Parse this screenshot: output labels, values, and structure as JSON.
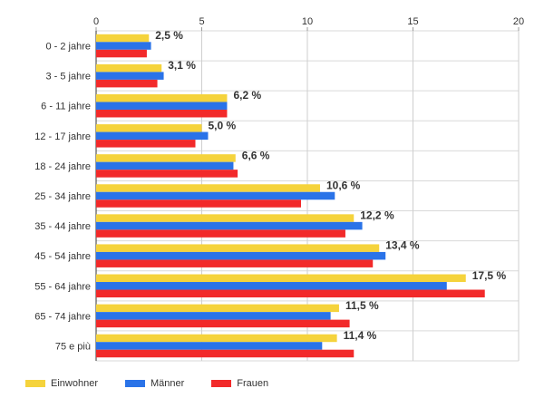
{
  "chart_data": {
    "type": "bar",
    "orientation": "horizontal",
    "categories": [
      "0 - 2 jahre",
      "3 - 5 jahre",
      "6 - 11 jahre",
      "12 - 17 jahre",
      "18 - 24 jahre",
      "25 - 34 jahre",
      "35 - 44 jahre",
      "45 - 54 jahre",
      "55 - 64 jahre",
      "65 - 74 jahre",
      "75 e più"
    ],
    "series": [
      {
        "name": "Einwohner",
        "color": "#f5d33c",
        "values": [
          2.5,
          3.1,
          6.2,
          5.0,
          6.6,
          10.6,
          12.2,
          13.4,
          17.5,
          11.5,
          11.4
        ]
      },
      {
        "name": "Männer",
        "color": "#2a73e8",
        "values": [
          2.6,
          3.2,
          6.2,
          5.3,
          6.5,
          11.3,
          12.6,
          13.7,
          16.6,
          11.1,
          10.7
        ]
      },
      {
        "name": "Frauen",
        "color": "#f22a2a",
        "values": [
          2.4,
          2.9,
          6.2,
          4.7,
          6.7,
          9.7,
          11.8,
          13.1,
          18.4,
          12.0,
          12.2
        ]
      }
    ],
    "data_labels": [
      "2,5 %",
      "3,1 %",
      "6,2 %",
      "5,0 %",
      "6,6 %",
      "10,6 %",
      "12,2 %",
      "13,4 %",
      "17,5 %",
      "11,5 %",
      "11,4 %"
    ],
    "xlim": [
      0,
      20
    ],
    "x_ticks": [
      "0",
      "5",
      "10",
      "15",
      "20"
    ],
    "x_tick_values": [
      0,
      5,
      10,
      15,
      20
    ],
    "axis_position": "top",
    "grid": true,
    "legend_position": "bottom-left"
  },
  "legend": {
    "items": [
      {
        "label": "Einwohner",
        "color": "#f5d33c"
      },
      {
        "label": "Männer",
        "color": "#2a73e8"
      },
      {
        "label": "Frauen",
        "color": "#f22a2a"
      }
    ]
  }
}
